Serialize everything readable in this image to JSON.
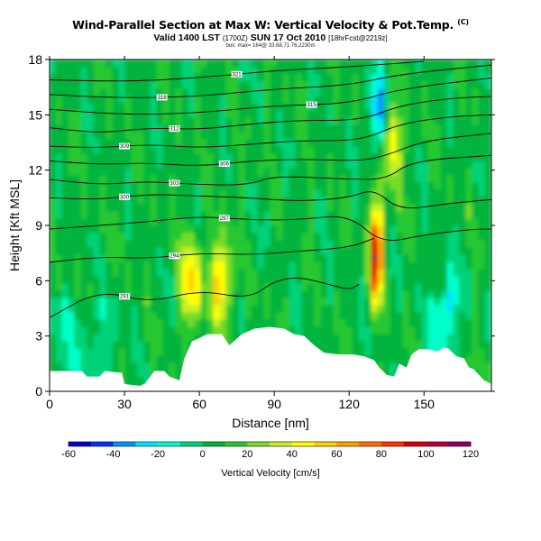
{
  "header": {
    "title": "Wind-Parallel Section at Max W: Vertical Velocity & Pot.Temp.",
    "title_mark": "(C)",
    "subtitle_main": "Valid 1400 LST",
    "subtitle_small1": "(1700Z)",
    "subtitle_main2": "SUN 17 Oct 2010",
    "subtitle_small2": "[18hrFcst@2219z]",
    "meta_line": "box: max= 164@ 33.68,71 76,2230m"
  },
  "chart_data": {
    "type": "heatmap",
    "xlabel": "Distance [nm]",
    "ylabel": "Height [Kft MSL]",
    "xlim": [
      0,
      177
    ],
    "ylim": [
      0,
      18
    ],
    "xticks": [
      0,
      30,
      60,
      90,
      120,
      150
    ],
    "yticks": [
      0,
      3,
      6,
      9,
      12,
      15,
      18
    ],
    "colorbar": {
      "label": "Vertical Velocity [cm/s]",
      "range": [
        -60,
        120
      ],
      "tick_values": [
        -60,
        -40,
        -20,
        0,
        20,
        40,
        60,
        80,
        100,
        120
      ],
      "colors": [
        "#0000c8",
        "#0032ff",
        "#0096ff",
        "#00e6ff",
        "#00ffc8",
        "#00d278",
        "#00b43c",
        "#28c832",
        "#78dc28",
        "#c8f028",
        "#ffff00",
        "#ffd200",
        "#ffa000",
        "#ff6e00",
        "#ff3200",
        "#dc0000",
        "#b4003c",
        "#8c0064"
      ]
    },
    "terrain_kft": [
      [
        0,
        1.1
      ],
      [
        13,
        1.1
      ],
      [
        15,
        0.8
      ],
      [
        20,
        0.8
      ],
      [
        22,
        1.1
      ],
      [
        29,
        1.0
      ],
      [
        30,
        0.4
      ],
      [
        36,
        0.3
      ],
      [
        38,
        0.4
      ],
      [
        42,
        1.1
      ],
      [
        46,
        1.1
      ],
      [
        48,
        0.8
      ],
      [
        52,
        0.6
      ],
      [
        54,
        1.8
      ],
      [
        57,
        2.7
      ],
      [
        60,
        2.9
      ],
      [
        63,
        3.1
      ],
      [
        69,
        3.1
      ],
      [
        72,
        2.5
      ],
      [
        77,
        3.1
      ],
      [
        82,
        3.4
      ],
      [
        88,
        3.5
      ],
      [
        94,
        3.4
      ],
      [
        98,
        3.1
      ],
      [
        102,
        3.0
      ],
      [
        106,
        2.5
      ],
      [
        110,
        2.1
      ],
      [
        116,
        2.0
      ],
      [
        122,
        2.0
      ],
      [
        126,
        1.9
      ],
      [
        130,
        1.7
      ],
      [
        132,
        1.3
      ],
      [
        135,
        0.9
      ],
      [
        138,
        0.8
      ],
      [
        140,
        1.5
      ],
      [
        143,
        1.3
      ],
      [
        145,
        2.0
      ],
      [
        148,
        2.3
      ],
      [
        152,
        2.3
      ],
      [
        154,
        2.2
      ],
      [
        156,
        2.2
      ],
      [
        158,
        2.4
      ],
      [
        160,
        2.3
      ],
      [
        163,
        1.9
      ],
      [
        166,
        1.8
      ],
      [
        168,
        1.3
      ],
      [
        170,
        1.2
      ],
      [
        172,
        0.9
      ],
      [
        174,
        0.6
      ],
      [
        177,
        0.4
      ]
    ],
    "vertical_velocity_features": [
      {
        "x_nm": 57,
        "z_kft": 6.0,
        "peak_cms": 50
      },
      {
        "x_nm": 69,
        "z_kft": 6.0,
        "peak_cms": 50
      },
      {
        "x_nm": 131,
        "z_kft": 7.5,
        "peak_cms": 95
      },
      {
        "x_nm": 137,
        "z_kft": 13.5,
        "peak_cms": 45
      },
      {
        "x_nm": 132,
        "z_kft": 15.0,
        "peak_cms": -40
      },
      {
        "x_nm": 160,
        "z_kft": 4.5,
        "peak_cms": -30
      }
    ],
    "theta_contours": [
      {
        "level": "291",
        "points": [
          [
            0,
            4.0
          ],
          [
            20,
            5.5
          ],
          [
            40,
            4.8
          ],
          [
            60,
            5.5
          ],
          [
            80,
            5.0
          ],
          [
            90,
            6.0
          ],
          [
            100,
            6.2
          ],
          [
            112,
            5.8
          ],
          [
            120,
            5.5
          ],
          [
            124,
            5.8
          ]
        ]
      },
      {
        "level": "294",
        "points": [
          [
            0,
            7.0
          ],
          [
            20,
            7.3
          ],
          [
            40,
            7.2
          ],
          [
            60,
            7.5
          ],
          [
            80,
            7.4
          ],
          [
            100,
            7.6
          ],
          [
            120,
            7.8
          ],
          [
            130,
            8.3
          ]
        ]
      },
      {
        "level": "297",
        "points": [
          [
            0,
            8.8
          ],
          [
            20,
            9.0
          ],
          [
            40,
            9.2
          ],
          [
            60,
            9.5
          ],
          [
            80,
            9.3
          ],
          [
            100,
            9.3
          ],
          [
            120,
            9.6
          ],
          [
            133,
            8.0
          ],
          [
            150,
            8.5
          ],
          [
            170,
            8.8
          ],
          [
            177,
            8.8
          ]
        ]
      },
      {
        "level": "300",
        "points": [
          [
            0,
            10.5
          ],
          [
            20,
            10.4
          ],
          [
            40,
            10.7
          ],
          [
            60,
            10.6
          ],
          [
            80,
            10.5
          ],
          [
            100,
            10.3
          ],
          [
            120,
            10.5
          ],
          [
            130,
            11.0
          ],
          [
            140,
            9.8
          ],
          [
            160,
            10.2
          ],
          [
            177,
            10.4
          ]
        ]
      },
      {
        "level": "303",
        "points": [
          [
            0,
            11.5
          ],
          [
            20,
            11.2
          ],
          [
            40,
            11.4
          ],
          [
            60,
            11.2
          ],
          [
            80,
            11.2
          ],
          [
            90,
            11.7
          ],
          [
            120,
            11.5
          ],
          [
            135,
            11.5
          ],
          [
            145,
            12.5
          ],
          [
            177,
            12.8
          ]
        ]
      },
      {
        "level": "306",
        "points": [
          [
            0,
            12.5
          ],
          [
            20,
            12.3
          ],
          [
            40,
            12.4
          ],
          [
            60,
            12.2
          ],
          [
            80,
            12.5
          ],
          [
            100,
            12.6
          ],
          [
            125,
            12.5
          ],
          [
            135,
            12.8
          ],
          [
            150,
            13.6
          ],
          [
            177,
            14.0
          ]
        ]
      },
      {
        "level": "309",
        "points": [
          [
            0,
            13.3
          ],
          [
            20,
            13.2
          ],
          [
            40,
            13.4
          ],
          [
            60,
            13.2
          ],
          [
            80,
            13.4
          ],
          [
            100,
            13.6
          ],
          [
            125,
            13.6
          ],
          [
            140,
            14.5
          ],
          [
            160,
            14.9
          ],
          [
            177,
            15.0
          ]
        ]
      },
      {
        "level": "312",
        "points": [
          [
            0,
            14.3
          ],
          [
            20,
            14.0
          ],
          [
            40,
            14.3
          ],
          [
            60,
            14.2
          ],
          [
            80,
            14.5
          ],
          [
            100,
            14.7
          ],
          [
            125,
            14.7
          ],
          [
            140,
            15.5
          ],
          [
            160,
            15.9
          ],
          [
            177,
            16.0
          ]
        ]
      },
      {
        "level": "315",
        "points": [
          [
            0,
            15.3
          ],
          [
            30,
            15.0
          ],
          [
            60,
            15.1
          ],
          [
            90,
            15.5
          ],
          [
            120,
            15.6
          ],
          [
            140,
            16.4
          ],
          [
            177,
            17.0
          ]
        ]
      },
      {
        "level": "318",
        "points": [
          [
            0,
            16.1
          ],
          [
            30,
            15.9
          ],
          [
            60,
            16.0
          ],
          [
            90,
            16.4
          ],
          [
            120,
            16.6
          ],
          [
            140,
            17.2
          ],
          [
            177,
            17.7
          ]
        ]
      },
      {
        "level": "321",
        "points": [
          [
            0,
            16.9
          ],
          [
            30,
            16.8
          ],
          [
            60,
            17.0
          ],
          [
            90,
            17.4
          ],
          [
            120,
            17.6
          ],
          [
            150,
            17.9
          ]
        ]
      }
    ]
  }
}
